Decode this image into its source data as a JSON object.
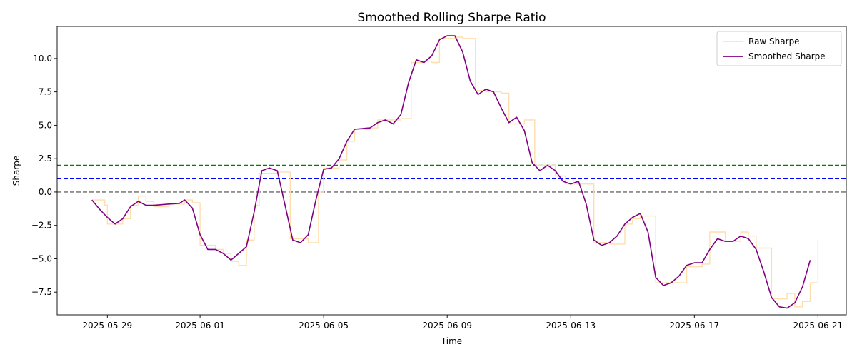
{
  "chart_data": {
    "type": "line",
    "title": "Smoothed Rolling Sharpe Ratio",
    "xlabel": "Time",
    "ylabel": "Sharpe",
    "xlim": [
      "2025-05-27T09:00",
      "2025-06-21T22:00"
    ],
    "ylim": [
      -9.2,
      12.4
    ],
    "x_ticks": [
      "2025-05-29",
      "2025-06-01",
      "2025-06-05",
      "2025-06-09",
      "2025-06-13",
      "2025-06-17",
      "2025-06-21"
    ],
    "y_ticks": [
      -7.5,
      -5.0,
      -2.5,
      0.0,
      2.5,
      5.0,
      7.5,
      10.0
    ],
    "y_tick_labels": [
      "−7.5",
      "−5.0",
      "−2.5",
      "0.0",
      "2.5",
      "5.0",
      "7.5",
      "10.0"
    ],
    "legend_position": "upper right",
    "grid": false,
    "reference_lines": [
      {
        "y": 2.0,
        "color": "#008000",
        "style": "dashed"
      },
      {
        "y": 1.0,
        "color": "#0000ff",
        "style": "dashed"
      },
      {
        "y": 0.0,
        "color": "#808080",
        "style": "dashed"
      }
    ],
    "series": [
      {
        "name": "Raw Sharpe",
        "color": "#ffdead",
        "style": "steps",
        "points": [
          [
            "2025-05-28T12:00",
            -0.6
          ],
          [
            "2025-05-28T22:00",
            -1.0
          ],
          [
            "2025-05-29T00:00",
            -2.4
          ],
          [
            "2025-05-29T12:00",
            -2.0
          ],
          [
            "2025-05-29T18:00",
            -1.0
          ],
          [
            "2025-05-30T00:00",
            -0.3
          ],
          [
            "2025-05-30T06:00",
            -0.7
          ],
          [
            "2025-05-30T12:00",
            -1.1
          ],
          [
            "2025-05-31T00:00",
            -0.9
          ],
          [
            "2025-05-31T12:00",
            -0.6
          ],
          [
            "2025-05-31T18:00",
            -0.8
          ],
          [
            "2025-06-01T00:00",
            -4.0
          ],
          [
            "2025-06-01T12:00",
            -4.3
          ],
          [
            "2025-06-01T18:00",
            -4.6
          ],
          [
            "2025-06-02T00:00",
            -5.2
          ],
          [
            "2025-06-02T06:00",
            -5.5
          ],
          [
            "2025-06-02T12:00",
            -3.6
          ],
          [
            "2025-06-02T18:00",
            -1.0
          ],
          [
            "2025-06-02T22:00",
            1.4
          ],
          [
            "2025-06-03T12:00",
            1.5
          ],
          [
            "2025-06-03T22:00",
            -3.5
          ],
          [
            "2025-06-04T12:00",
            -3.8
          ],
          [
            "2025-06-04T20:00",
            0.0
          ],
          [
            "2025-06-05T00:00",
            1.8
          ],
          [
            "2025-06-05T12:00",
            2.4
          ],
          [
            "2025-06-05T18:00",
            3.8
          ],
          [
            "2025-06-06T00:00",
            4.7
          ],
          [
            "2025-06-06T12:00",
            4.8
          ],
          [
            "2025-06-06T18:00",
            5.4
          ],
          [
            "2025-06-07T00:00",
            5.4
          ],
          [
            "2025-06-07T12:00",
            5.5
          ],
          [
            "2025-06-07T20:00",
            9.7
          ],
          [
            "2025-06-08T06:00",
            9.8
          ],
          [
            "2025-06-08T12:00",
            9.7
          ],
          [
            "2025-06-08T18:00",
            11.5
          ],
          [
            "2025-06-09T06:00",
            11.6
          ],
          [
            "2025-06-09T12:00",
            11.5
          ],
          [
            "2025-06-09T22:00",
            7.6
          ],
          [
            "2025-06-10T06:00",
            7.5
          ],
          [
            "2025-06-10T18:00",
            7.4
          ],
          [
            "2025-06-11T00:00",
            5.1
          ],
          [
            "2025-06-11T12:00",
            5.4
          ],
          [
            "2025-06-11T20:00",
            2.0
          ],
          [
            "2025-06-12T06:00",
            2.0
          ],
          [
            "2025-06-12T12:00",
            1.2
          ],
          [
            "2025-06-12T20:00",
            0.6
          ],
          [
            "2025-06-13T06:00",
            0.6
          ],
          [
            "2025-06-13T18:00",
            -3.8
          ],
          [
            "2025-06-14T06:00",
            -3.9
          ],
          [
            "2025-06-14T18:00",
            -2.4
          ],
          [
            "2025-06-15T00:00",
            -2.0
          ],
          [
            "2025-06-15T06:00",
            -1.8
          ],
          [
            "2025-06-15T18:00",
            -6.8
          ],
          [
            "2025-06-16T06:00",
            -6.8
          ],
          [
            "2025-06-16T18:00",
            -5.6
          ],
          [
            "2025-06-17T06:00",
            -5.4
          ],
          [
            "2025-06-17T12:00",
            -3.0
          ],
          [
            "2025-06-18T00:00",
            -3.7
          ],
          [
            "2025-06-18T12:00",
            -3.0
          ],
          [
            "2025-06-18T18:00",
            -3.3
          ],
          [
            "2025-06-19T00:00",
            -4.2
          ],
          [
            "2025-06-19T06:00",
            -4.2
          ],
          [
            "2025-06-19T12:00",
            -8.0
          ],
          [
            "2025-06-20T00:00",
            -7.6
          ],
          [
            "2025-06-20T06:00",
            -8.6
          ],
          [
            "2025-06-20T12:00",
            -8.2
          ],
          [
            "2025-06-20T18:00",
            -6.8
          ],
          [
            "2025-06-21T00:00",
            -3.6
          ]
        ]
      },
      {
        "name": "Smoothed Sharpe",
        "color": "#800080",
        "style": "line",
        "points": [
          [
            "2025-05-28T12:00",
            -0.6
          ],
          [
            "2025-05-28T18:00",
            -1.3
          ],
          [
            "2025-05-29T00:00",
            -1.9
          ],
          [
            "2025-05-29T06:00",
            -2.4
          ],
          [
            "2025-05-29T12:00",
            -2.0
          ],
          [
            "2025-05-29T18:00",
            -1.1
          ],
          [
            "2025-05-30T00:00",
            -0.7
          ],
          [
            "2025-05-30T06:00",
            -1.0
          ],
          [
            "2025-05-30T12:00",
            -1.0
          ],
          [
            "2025-05-31T00:00",
            -0.9
          ],
          [
            "2025-05-31T08:00",
            -0.85
          ],
          [
            "2025-05-31T12:00",
            -0.6
          ],
          [
            "2025-05-31T18:00",
            -1.2
          ],
          [
            "2025-06-01T00:00",
            -3.2
          ],
          [
            "2025-06-01T06:00",
            -4.3
          ],
          [
            "2025-06-01T12:00",
            -4.3
          ],
          [
            "2025-06-01T18:00",
            -4.6
          ],
          [
            "2025-06-02T00:00",
            -5.1
          ],
          [
            "2025-06-02T06:00",
            -4.6
          ],
          [
            "2025-06-02T12:00",
            -4.1
          ],
          [
            "2025-06-02T18:00",
            -1.5
          ],
          [
            "2025-06-03T00:00",
            1.6
          ],
          [
            "2025-06-03T06:00",
            1.8
          ],
          [
            "2025-06-03T12:00",
            1.6
          ],
          [
            "2025-06-03T18:00",
            -1.0
          ],
          [
            "2025-06-04T00:00",
            -3.6
          ],
          [
            "2025-06-04T06:00",
            -3.8
          ],
          [
            "2025-06-04T12:00",
            -3.2
          ],
          [
            "2025-06-04T18:00",
            -0.6
          ],
          [
            "2025-06-05T00:00",
            1.7
          ],
          [
            "2025-06-05T06:00",
            1.8
          ],
          [
            "2025-06-05T12:00",
            2.5
          ],
          [
            "2025-06-05T18:00",
            3.8
          ],
          [
            "2025-06-06T00:00",
            4.7
          ],
          [
            "2025-06-06T12:00",
            4.8
          ],
          [
            "2025-06-06T18:00",
            5.2
          ],
          [
            "2025-06-07T00:00",
            5.4
          ],
          [
            "2025-06-07T06:00",
            5.1
          ],
          [
            "2025-06-07T12:00",
            5.8
          ],
          [
            "2025-06-07T18:00",
            8.2
          ],
          [
            "2025-06-08T00:00",
            9.9
          ],
          [
            "2025-06-08T06:00",
            9.7
          ],
          [
            "2025-06-08T12:00",
            10.2
          ],
          [
            "2025-06-08T18:00",
            11.4
          ],
          [
            "2025-06-09T00:00",
            11.7
          ],
          [
            "2025-06-09T06:00",
            11.7
          ],
          [
            "2025-06-09T12:00",
            10.5
          ],
          [
            "2025-06-09T18:00",
            8.3
          ],
          [
            "2025-06-10T00:00",
            7.3
          ],
          [
            "2025-06-10T06:00",
            7.7
          ],
          [
            "2025-06-10T12:00",
            7.5
          ],
          [
            "2025-06-10T18:00",
            6.3
          ],
          [
            "2025-06-11T00:00",
            5.2
          ],
          [
            "2025-06-11T06:00",
            5.6
          ],
          [
            "2025-06-11T12:00",
            4.6
          ],
          [
            "2025-06-11T18:00",
            2.2
          ],
          [
            "2025-06-12T00:00",
            1.6
          ],
          [
            "2025-06-12T06:00",
            2.0
          ],
          [
            "2025-06-12T12:00",
            1.6
          ],
          [
            "2025-06-12T18:00",
            0.8
          ],
          [
            "2025-06-13T00:00",
            0.6
          ],
          [
            "2025-06-13T06:00",
            0.8
          ],
          [
            "2025-06-13T12:00",
            -0.9
          ],
          [
            "2025-06-13T18:00",
            -3.6
          ],
          [
            "2025-06-14T00:00",
            -4.0
          ],
          [
            "2025-06-14T06:00",
            -3.8
          ],
          [
            "2025-06-14T12:00",
            -3.3
          ],
          [
            "2025-06-14T18:00",
            -2.4
          ],
          [
            "2025-06-15T00:00",
            -1.9
          ],
          [
            "2025-06-15T06:00",
            -1.6
          ],
          [
            "2025-06-15T12:00",
            -3.0
          ],
          [
            "2025-06-15T18:00",
            -6.4
          ],
          [
            "2025-06-16T00:00",
            -7.0
          ],
          [
            "2025-06-16T06:00",
            -6.8
          ],
          [
            "2025-06-16T12:00",
            -6.3
          ],
          [
            "2025-06-16T18:00",
            -5.5
          ],
          [
            "2025-06-17T00:00",
            -5.3
          ],
          [
            "2025-06-17T06:00",
            -5.3
          ],
          [
            "2025-06-17T12:00",
            -4.3
          ],
          [
            "2025-06-17T18:00",
            -3.5
          ],
          [
            "2025-06-18T00:00",
            -3.7
          ],
          [
            "2025-06-18T06:00",
            -3.7
          ],
          [
            "2025-06-18T12:00",
            -3.3
          ],
          [
            "2025-06-18T18:00",
            -3.5
          ],
          [
            "2025-06-19T00:00",
            -4.3
          ],
          [
            "2025-06-19T06:00",
            -6.0
          ],
          [
            "2025-06-19T12:00",
            -7.9
          ],
          [
            "2025-06-19T18:00",
            -8.6
          ],
          [
            "2025-06-20T00:00",
            -8.7
          ],
          [
            "2025-06-20T06:00",
            -8.3
          ],
          [
            "2025-06-20T12:00",
            -7.1
          ],
          [
            "2025-06-20T18:00",
            -5.1
          ]
        ]
      }
    ]
  }
}
